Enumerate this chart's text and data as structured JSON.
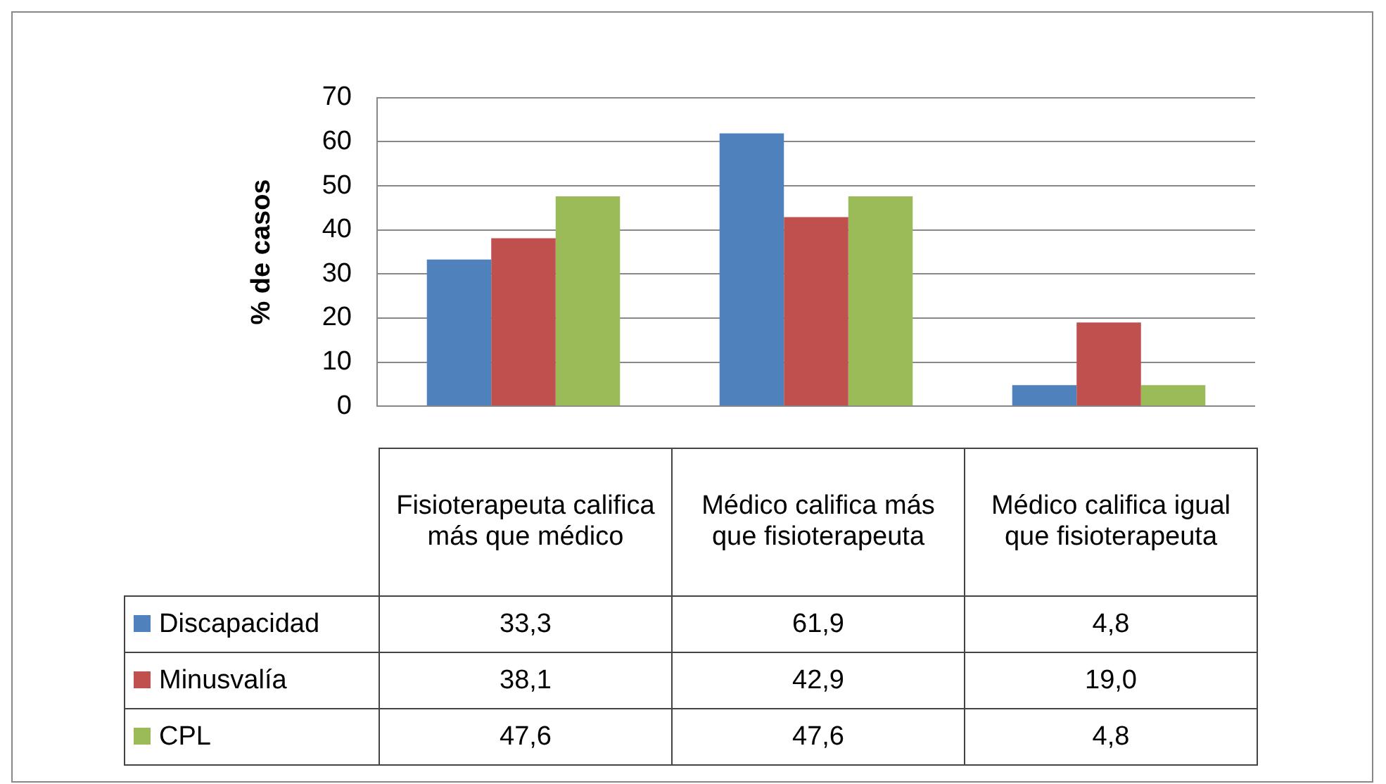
{
  "chart_data": {
    "type": "bar",
    "ylabel": "% de casos",
    "categories": [
      "Fisioterapeuta califica más que médico",
      "Médico califica más que fisioterapeuta",
      "Médico califica igual que fisioterapeuta"
    ],
    "series": [
      {
        "name": "Discapacidad",
        "color": "#4f81bd",
        "values": [
          33.3,
          61.9,
          4.8
        ],
        "value_labels": [
          "33,3",
          "61,9",
          "4,8"
        ]
      },
      {
        "name": "Minusvalía",
        "color": "#c0504d",
        "values": [
          38.1,
          42.9,
          19.0
        ],
        "value_labels": [
          "38,1",
          "42,9",
          "19,0"
        ]
      },
      {
        "name": "CPL",
        "color": "#9bbb59",
        "values": [
          47.6,
          47.6,
          4.8
        ],
        "value_labels": [
          "47,6",
          "47,6",
          "4,8"
        ]
      }
    ],
    "ylim": [
      0,
      70
    ],
    "yticks": [
      0,
      10,
      20,
      30,
      40,
      50,
      60,
      70
    ],
    "grid": "y",
    "legend": "bottom"
  }
}
